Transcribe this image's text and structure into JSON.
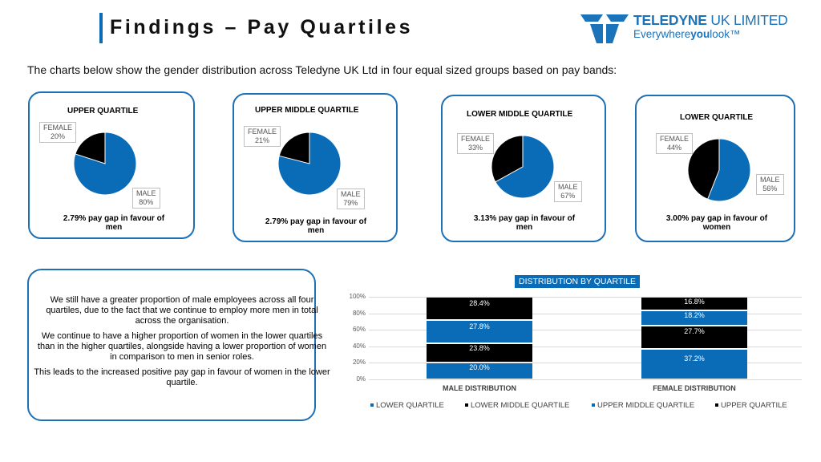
{
  "page": {
    "title": "Findings – Pay Quartiles",
    "intro": "The charts below show the gender distribution across Teledyne UK Ltd in four equal sized groups based on pay bands:"
  },
  "logo": {
    "name_bold": "TELEDYNE",
    "name_light": " UK LIMITED",
    "tag_pre": "Everywhere",
    "tag_bold": "you",
    "tag_post": "look™"
  },
  "colors": {
    "male": "#0a6bb7",
    "female": "#000000",
    "card_border": "#1f6fb5"
  },
  "cards": [
    {
      "title": "UPPER QUARTILE",
      "female_name": "FEMALE",
      "female_pct": "20%",
      "male_name": "MALE",
      "male_pct": "80%",
      "gap": "2.79% pay gap in favour of men",
      "female_value": 20
    },
    {
      "title": "UPPER MIDDLE QUARTILE",
      "female_name": "FEMALE",
      "female_pct": "21%",
      "male_name": "MALE",
      "male_pct": "79%",
      "gap": "2.79% pay gap in favour of men",
      "female_value": 21
    },
    {
      "title": "LOWER MIDDLE QUARTILE",
      "female_name": "FEMALE",
      "female_pct": "33%",
      "male_name": "MALE",
      "male_pct": "67%",
      "gap": "3.13% pay gap in favour of men",
      "female_value": 33
    },
    {
      "title": "LOWER QUARTILE",
      "female_name": "FEMALE",
      "female_pct": "44%",
      "male_name": "MALE",
      "male_pct": "56%",
      "gap": "3.00% pay gap in favour of women",
      "female_value": 44
    }
  ],
  "summary": {
    "p1": "We still have a greater proportion of male employees across all four quartiles, due to the fact that we continue to employ more men in total across the organisation.",
    "p2": "We continue to have a higher proportion of women in the lower quartiles than in the higher quartiles, alongside having a lower proportion of women in comparison to men in senior roles.",
    "p3": "This leads to the increased positive pay gap in favour of women in the lower quartile."
  },
  "chart_data": {
    "type": "bar",
    "stacked": true,
    "title": "DISTRIBUTION BY QUARTILE",
    "categories": [
      "MALE DISTRIBUTION",
      "FEMALE DISTRIBUTION"
    ],
    "y_ticks": [
      "0%",
      "20%",
      "40%",
      "60%",
      "80%",
      "100%"
    ],
    "ylim": [
      0,
      100
    ],
    "legend_position": "bottom",
    "series": [
      {
        "name": "LOWER QUARTILE",
        "values": [
          20.0,
          37.2
        ],
        "labels": [
          "20.0%",
          "37.2%"
        ],
        "color": "#0a6bb7"
      },
      {
        "name": "LOWER MIDDLE QUARTILE",
        "values": [
          23.8,
          27.7
        ],
        "labels": [
          "23.8%",
          "27.7%"
        ],
        "color": "#000000"
      },
      {
        "name": "UPPER MIDDLE QUARTILE",
        "values": [
          27.8,
          18.2
        ],
        "labels": [
          "27.8%",
          "18.2%"
        ],
        "color": "#0a6bb7"
      },
      {
        "name": "UPPER QUARTILE",
        "values": [
          28.4,
          16.8
        ],
        "labels": [
          "28.4%",
          "16.8%"
        ],
        "color": "#000000"
      }
    ]
  }
}
